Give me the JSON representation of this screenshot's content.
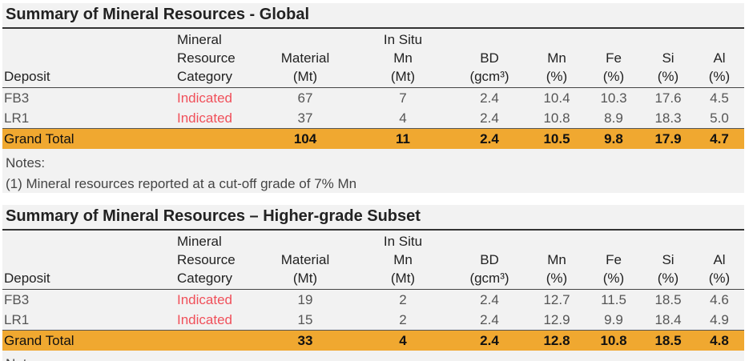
{
  "tables": [
    {
      "title": "Summary of Mineral Resources - Global",
      "headers": {
        "deposit": "Deposit",
        "category": [
          "Mineral",
          "Resource",
          "Category"
        ],
        "material": [
          "Material",
          "(Mt)"
        ],
        "in_situ_mn": [
          "In Situ",
          "Mn",
          "(Mt)"
        ],
        "bd": [
          "BD",
          "(gcm³)"
        ],
        "mn": [
          "Mn",
          "(%)"
        ],
        "fe": [
          "Fe",
          "(%)"
        ],
        "si": [
          "Si",
          "(%)"
        ],
        "al": [
          "Al",
          "(%)"
        ]
      },
      "rows": [
        {
          "deposit": "FB3",
          "category": "Indicated",
          "material": "67",
          "in_situ_mn": "7",
          "bd": "2.4",
          "mn": "10.4",
          "fe": "10.3",
          "si": "17.6",
          "al": "4.5"
        },
        {
          "deposit": "LR1",
          "category": "Indicated",
          "material": "37",
          "in_situ_mn": "4",
          "bd": "2.4",
          "mn": "10.8",
          "fe": "8.9",
          "si": "18.3",
          "al": "5.0"
        }
      ],
      "total": {
        "deposit": "Grand Total",
        "category": "",
        "material": "104",
        "in_situ_mn": "11",
        "bd": "2.4",
        "mn": "10.5",
        "fe": "9.8",
        "si": "17.9",
        "al": "4.7"
      },
      "notes": [
        "Notes:",
        "(1) Mineral resources reported at a cut-off grade of 7% Mn"
      ]
    },
    {
      "title": "Summary of Mineral Resources – Higher-grade Subset",
      "headers": {
        "deposit": "Deposit",
        "category": [
          "Mineral",
          "Resource",
          "Category"
        ],
        "material": [
          "Material",
          "(Mt)"
        ],
        "in_situ_mn": [
          "In Situ",
          "Mn",
          "(Mt)"
        ],
        "bd": [
          "BD",
          "(gcm³)"
        ],
        "mn": [
          "Mn",
          "(%)"
        ],
        "fe": [
          "Fe",
          "(%)"
        ],
        "si": [
          "Si",
          "(%)"
        ],
        "al": [
          "Al",
          "(%)"
        ]
      },
      "rows": [
        {
          "deposit": "FB3",
          "category": "Indicated",
          "material": "19",
          "in_situ_mn": "2",
          "bd": "2.4",
          "mn": "12.7",
          "fe": "11.5",
          "si": "18.5",
          "al": "4.6"
        },
        {
          "deposit": "LR1",
          "category": "Indicated",
          "material": "15",
          "in_situ_mn": "2",
          "bd": "2.4",
          "mn": "12.9",
          "fe": "9.9",
          "si": "18.4",
          "al": "4.9"
        }
      ],
      "total": {
        "deposit": "Grand Total",
        "category": "",
        "material": "33",
        "in_situ_mn": "4",
        "bd": "2.4",
        "mn": "12.8",
        "fe": "10.8",
        "si": "18.5",
        "al": "4.8"
      },
      "notes": [
        "Notes:"
      ]
    }
  ],
  "colors": {
    "total_row_fill": "#f0a830",
    "category_text": "#f0505a",
    "panel_background": "#f2f2f2"
  }
}
